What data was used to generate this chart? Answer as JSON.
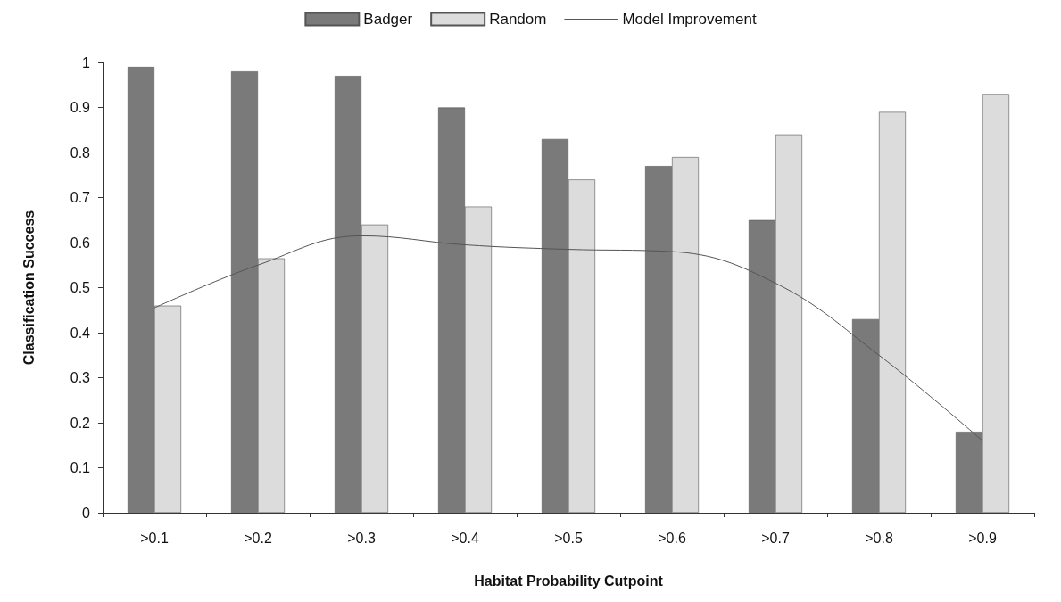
{
  "chart_data": {
    "type": "bar",
    "xlabel": "Habitat Probability Cutpoint",
    "ylabel": "Classification Success",
    "categories": [
      ">0.1",
      ">0.2",
      ">0.3",
      ">0.4",
      ">0.5",
      ">0.6",
      ">0.7",
      ">0.8",
      ">0.9"
    ],
    "series": [
      {
        "name": "Badger",
        "color": "#7a7a7a",
        "values": [
          0.99,
          0.98,
          0.97,
          0.9,
          0.83,
          0.77,
          0.65,
          0.43,
          0.18
        ]
      },
      {
        "name": "Random",
        "color": "#dcdcdc",
        "values": [
          0.46,
          0.565,
          0.64,
          0.68,
          0.74,
          0.79,
          0.84,
          0.89,
          0.93
        ]
      },
      {
        "name": "Model Improvement",
        "type": "line",
        "color": "#555555",
        "values": [
          0.455,
          0.55,
          0.615,
          0.595,
          0.585,
          0.58,
          0.51,
          0.35,
          0.16
        ]
      }
    ],
    "ylim": [
      0,
      1
    ],
    "yticks": [
      0,
      0.1,
      0.2,
      0.3,
      0.4,
      0.5,
      0.6,
      0.7,
      0.8,
      0.9,
      1
    ],
    "grid": false,
    "legend": "top",
    "marker": "none"
  }
}
